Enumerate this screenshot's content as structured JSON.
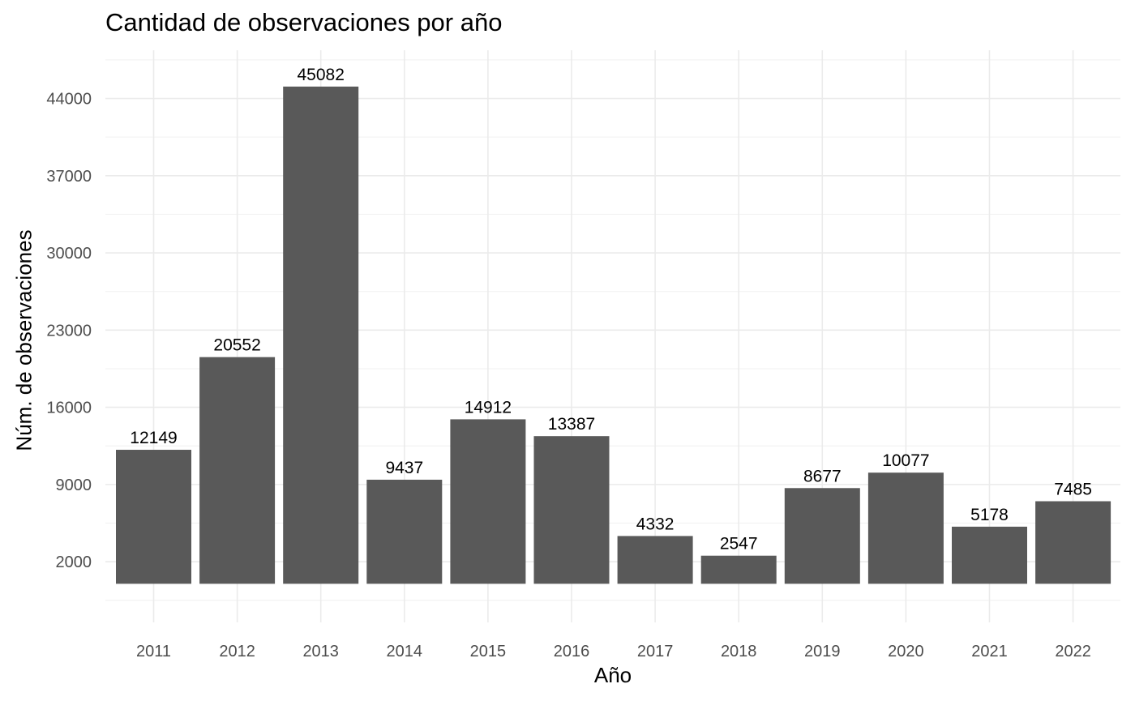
{
  "chart_data": {
    "type": "bar",
    "title": "Cantidad de observaciones por año",
    "xlabel": "Año",
    "ylabel": "Núm. de observaciones",
    "categories": [
      "2011",
      "2012",
      "2013",
      "2014",
      "2015",
      "2016",
      "2017",
      "2018",
      "2019",
      "2020",
      "2021",
      "2022"
    ],
    "values": [
      12149,
      20552,
      45082,
      9437,
      14912,
      13387,
      4332,
      2547,
      8677,
      10077,
      5178,
      7485
    ],
    "data_labels": [
      "12149",
      "20552",
      "45082",
      "9437",
      "14912",
      "13387",
      "4332",
      "2547",
      "8677",
      "10077",
      "5178",
      "7485"
    ],
    "y_ticks": [
      2000,
      9000,
      16000,
      23000,
      30000,
      37000,
      44000
    ],
    "y_tick_labels": [
      "2000",
      "9000",
      "16000",
      "23000",
      "30000",
      "37000",
      "44000"
    ],
    "ylim": [
      -3500,
      48375
    ],
    "bar_baseline": 0,
    "grid": true,
    "colors": {
      "bar": "#595959",
      "grid_major": "#ebebeb",
      "grid_minor": "#f3f3f3",
      "tick_label": "#4d4d4d",
      "text": "#000000"
    }
  }
}
